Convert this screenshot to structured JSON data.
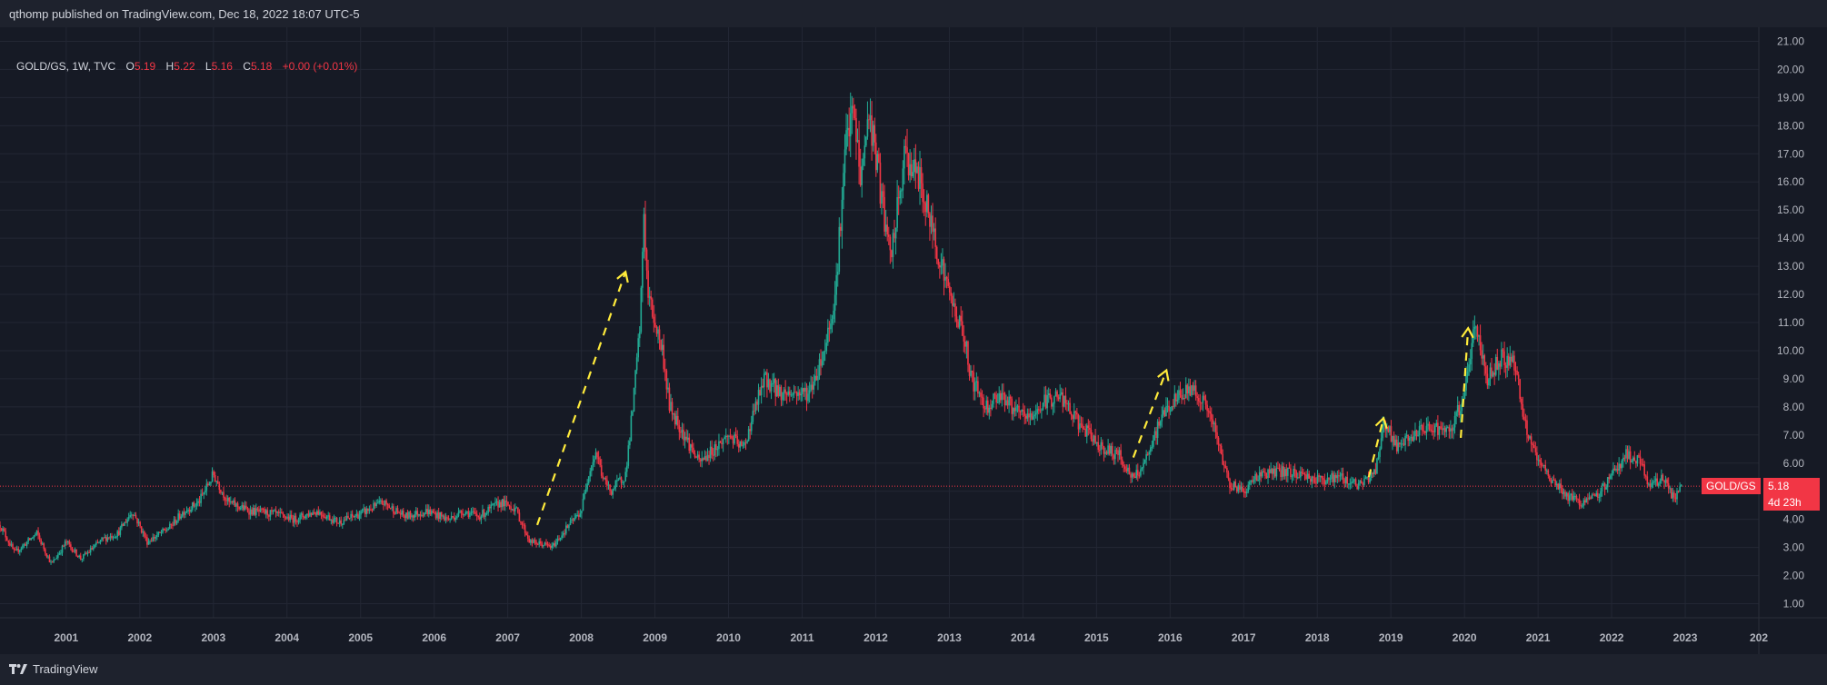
{
  "header": {
    "publisher_text": "qthomp published on TradingView.com, Dec 18, 2022 18:07 UTC-5"
  },
  "legend": {
    "symbol": "GOLD/GS, 1W, TVC",
    "o_label": "O",
    "o_value": "5.19",
    "h_label": "H",
    "h_value": "5.22",
    "l_label": "L",
    "l_value": "5.16",
    "c_label": "C",
    "c_value": "5.18",
    "change": "+0.00 (+0.01%)"
  },
  "price_badges": {
    "symbol_tag": "GOLD/GS",
    "last_price": "5.18",
    "countdown": "4d 23h"
  },
  "footer": {
    "brand": "TradingView"
  },
  "colors": {
    "background": "#161a25",
    "up_candle": "#22ab94",
    "down_candle": "#f23645",
    "annotation": "#ffeb3b",
    "grid": "#232734",
    "axis_text": "#b2b5be"
  },
  "chart_data": {
    "type": "candlestick",
    "title": "GOLD/GS, 1W, TVC",
    "interval": "1W",
    "x_range": [
      2000.1,
      2024.0
    ],
    "ylim": [
      0.5,
      21.5
    ],
    "y_ticks": [
      "1.00",
      "2.00",
      "3.00",
      "4.00",
      "5.00",
      "6.00",
      "7.00",
      "8.00",
      "9.00",
      "10.00",
      "11.00",
      "12.00",
      "13.00",
      "14.00",
      "15.00",
      "16.00",
      "17.00",
      "18.00",
      "19.00",
      "20.00",
      "21.00"
    ],
    "x_ticks": [
      "2001",
      "2002",
      "2003",
      "2004",
      "2005",
      "2006",
      "2007",
      "2008",
      "2009",
      "2010",
      "2011",
      "2012",
      "2013",
      "2014",
      "2015",
      "2016",
      "2017",
      "2018",
      "2019",
      "2020",
      "2021",
      "2022",
      "2023",
      "202"
    ],
    "last_price": 5.18,
    "approx_closes": [
      [
        2000.1,
        3.8
      ],
      [
        2000.3,
        2.8
      ],
      [
        2000.6,
        3.5
      ],
      [
        2000.8,
        2.4
      ],
      [
        2001.0,
        3.2
      ],
      [
        2001.2,
        2.6
      ],
      [
        2001.5,
        3.3
      ],
      [
        2001.7,
        3.5
      ],
      [
        2001.9,
        4.3
      ],
      [
        2002.1,
        3.2
      ],
      [
        2002.4,
        3.7
      ],
      [
        2002.6,
        4.3
      ],
      [
        2002.8,
        4.6
      ],
      [
        2003.0,
        5.6
      ],
      [
        2003.2,
        4.6
      ],
      [
        2003.5,
        4.3
      ],
      [
        2003.8,
        4.2
      ],
      [
        2004.1,
        4.0
      ],
      [
        2004.4,
        4.3
      ],
      [
        2004.7,
        3.9
      ],
      [
        2005.0,
        4.2
      ],
      [
        2005.3,
        4.6
      ],
      [
        2005.6,
        4.1
      ],
      [
        2005.9,
        4.3
      ],
      [
        2006.2,
        4.0
      ],
      [
        2006.4,
        4.3
      ],
      [
        2006.6,
        4.1
      ],
      [
        2006.9,
        4.6
      ],
      [
        2007.1,
        4.4
      ],
      [
        2007.3,
        3.2
      ],
      [
        2007.5,
        3.1
      ],
      [
        2007.6,
        3.0
      ],
      [
        2007.8,
        3.7
      ],
      [
        2008.0,
        4.3
      ],
      [
        2008.1,
        5.7
      ],
      [
        2008.2,
        6.4
      ],
      [
        2008.3,
        5.4
      ],
      [
        2008.4,
        5.0
      ],
      [
        2008.5,
        5.3
      ],
      [
        2008.6,
        5.6
      ],
      [
        2008.7,
        8.0
      ],
      [
        2008.8,
        11.0
      ],
      [
        2008.85,
        15.0
      ],
      [
        2008.9,
        12.0
      ],
      [
        2009.0,
        11.0
      ],
      [
        2009.1,
        10.0
      ],
      [
        2009.2,
        8.0
      ],
      [
        2009.4,
        7.0
      ],
      [
        2009.6,
        6.0
      ],
      [
        2009.8,
        6.5
      ],
      [
        2010.0,
        7.0
      ],
      [
        2010.2,
        6.5
      ],
      [
        2010.4,
        8.3
      ],
      [
        2010.5,
        9.0
      ],
      [
        2010.7,
        8.5
      ],
      [
        2010.9,
        8.5
      ],
      [
        2011.1,
        8.5
      ],
      [
        2011.3,
        10.0
      ],
      [
        2011.45,
        12.0
      ],
      [
        2011.6,
        17.5
      ],
      [
        2011.7,
        18.5
      ],
      [
        2011.8,
        16.0
      ],
      [
        2011.9,
        18.5
      ],
      [
        2012.0,
        17.0
      ],
      [
        2012.1,
        15.0
      ],
      [
        2012.2,
        13.2
      ],
      [
        2012.4,
        17.0
      ],
      [
        2012.6,
        16.0
      ],
      [
        2012.8,
        14.0
      ],
      [
        2013.0,
        12.0
      ],
      [
        2013.2,
        10.5
      ],
      [
        2013.3,
        9.0
      ],
      [
        2013.5,
        8.0
      ],
      [
        2013.7,
        8.5
      ],
      [
        2013.9,
        7.8
      ],
      [
        2014.1,
        7.6
      ],
      [
        2014.3,
        8.2
      ],
      [
        2014.5,
        8.4
      ],
      [
        2014.7,
        7.6
      ],
      [
        2014.9,
        7.0
      ],
      [
        2015.1,
        6.5
      ],
      [
        2015.3,
        6.3
      ],
      [
        2015.5,
        5.4
      ],
      [
        2015.7,
        6.2
      ],
      [
        2015.9,
        7.8
      ],
      [
        2016.1,
        8.3
      ],
      [
        2016.3,
        8.7
      ],
      [
        2016.5,
        8.0
      ],
      [
        2016.6,
        7.2
      ],
      [
        2016.8,
        5.3
      ],
      [
        2017.0,
        5.0
      ],
      [
        2017.2,
        5.6
      ],
      [
        2017.5,
        5.7
      ],
      [
        2017.8,
        5.6
      ],
      [
        2018.0,
        5.4
      ],
      [
        2018.3,
        5.5
      ],
      [
        2018.6,
        5.2
      ],
      [
        2018.8,
        5.8
      ],
      [
        2018.9,
        7.5
      ],
      [
        2019.1,
        6.5
      ],
      [
        2019.3,
        7.0
      ],
      [
        2019.6,
        7.3
      ],
      [
        2019.8,
        7.0
      ],
      [
        2020.0,
        8.5
      ],
      [
        2020.15,
        11.0
      ],
      [
        2020.3,
        9.0
      ],
      [
        2020.5,
        9.8
      ],
      [
        2020.7,
        9.5
      ],
      [
        2020.8,
        7.5
      ],
      [
        2021.0,
        6.0
      ],
      [
        2021.2,
        5.4
      ],
      [
        2021.4,
        4.8
      ],
      [
        2021.6,
        4.6
      ],
      [
        2021.8,
        4.8
      ],
      [
        2022.0,
        5.6
      ],
      [
        2022.2,
        6.3
      ],
      [
        2022.4,
        6.0
      ],
      [
        2022.5,
        5.2
      ],
      [
        2022.7,
        5.5
      ],
      [
        2022.85,
        4.7
      ],
      [
        2022.96,
        5.18
      ]
    ]
  },
  "annotations": [
    {
      "type": "dashed-arrow",
      "from": [
        2007.4,
        3.8
      ],
      "to": [
        2008.6,
        12.8
      ]
    },
    {
      "type": "dashed-arrow",
      "from": [
        2015.5,
        6.2
      ],
      "to": [
        2015.95,
        9.3
      ]
    },
    {
      "type": "dashed-arrow",
      "from": [
        2018.7,
        5.5
      ],
      "to": [
        2018.9,
        7.6
      ]
    },
    {
      "type": "dashed-arrow",
      "from": [
        2019.95,
        6.9
      ],
      "to": [
        2020.05,
        10.8
      ]
    }
  ]
}
